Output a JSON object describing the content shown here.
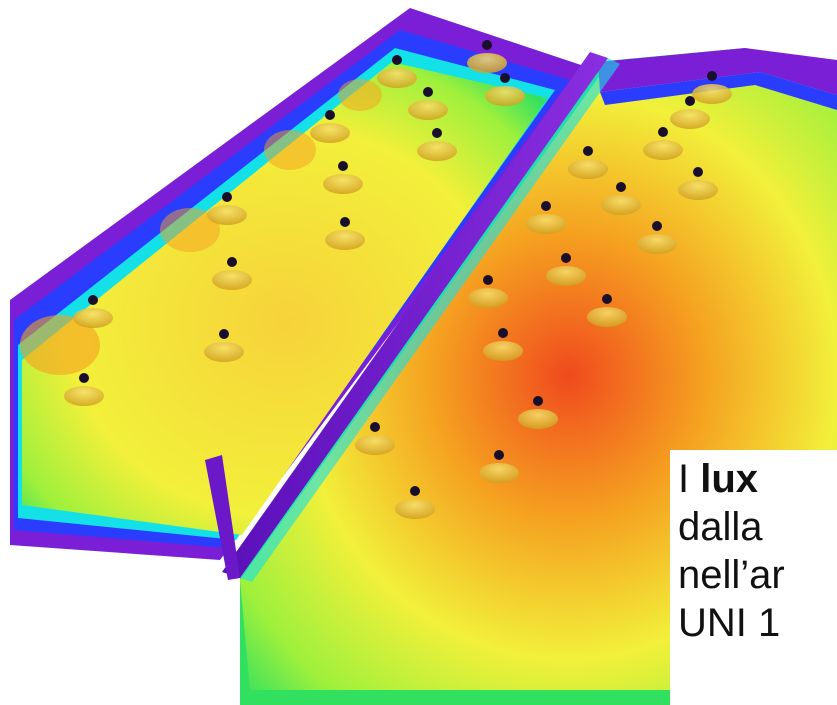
{
  "caption": {
    "word_1": "I",
    "word_2": "lux",
    "line_2": "dalla",
    "line_3": "nell’ar",
    "line_4": "UNI 1"
  },
  "colors": {
    "purple": "#7a1fd6",
    "blue": "#2a3dff",
    "cyan": "#14e0e8",
    "green": "#32e060",
    "yellow": "#f2f03a",
    "orange": "#f5a020",
    "red": "#f04a1e",
    "luminaire_dot": "#1a0f2a",
    "luminaire_cone": "#e8c830"
  }
}
